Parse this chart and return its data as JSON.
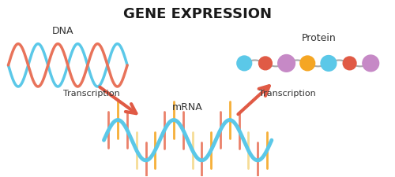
{
  "title": "GENE EXPRESSION",
  "title_fontsize": 13,
  "title_fontweight": "bold",
  "background_color": "#ffffff",
  "dna_label": "DNA",
  "mrna_label": "mRNA",
  "protein_label": "Protein",
  "transcription_label": "Transcription",
  "dna_strand1_color": "#E8735A",
  "dna_strand2_color": "#5BC8E8",
  "dna_rung_color": "#F5D98B",
  "mrna_strand_color": "#5BC8E8",
  "mrna_rung_colors": [
    "#E8735A",
    "#F5A623",
    "#E8735A",
    "#F5D98B",
    "#E8735A",
    "#F5A623"
  ],
  "arrow_color": "#E05A45",
  "protein_colors": [
    "#5BC8E8",
    "#E05A45",
    "#C689C6",
    "#F5A623",
    "#5BC8E8",
    "#E05A45",
    "#C689C6"
  ],
  "protein_line_color": "#aaaaaa",
  "label_color": "#333333",
  "label_fontsize": 8
}
